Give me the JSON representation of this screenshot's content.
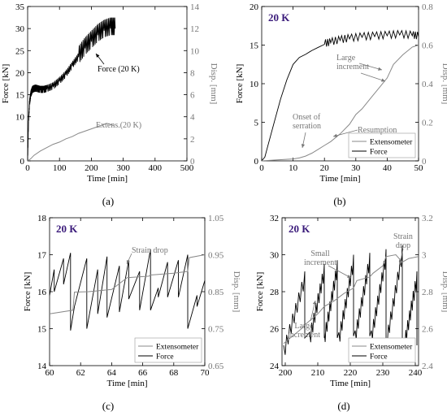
{
  "chart_data": [
    {
      "id": "a",
      "type": "line",
      "caption": "(a)",
      "xlabel": "Time [min]",
      "ylabel": "Force [kN]",
      "ylabel_right": "Disp. [mm]",
      "xlim": [
        0,
        500
      ],
      "ylim": [
        0,
        35
      ],
      "ylim_right": [
        0,
        14
      ],
      "xticks": [
        0,
        100,
        200,
        300,
        400,
        500
      ],
      "yticks": [
        0,
        5,
        10,
        15,
        20,
        25,
        30,
        35
      ],
      "yticks_right": [
        0,
        2,
        4,
        6,
        8,
        10,
        12,
        14
      ],
      "grid": false,
      "annotations": [
        {
          "text": "Force (20 K)",
          "x": 220,
          "y": 21
        },
        {
          "text": "Extens.(20 K)",
          "x": 200,
          "y": 7.5
        }
      ],
      "series": [
        {
          "axis": "left",
          "color": "#000000",
          "x": [
            0,
            3,
            6,
            10,
            15,
            20,
            25,
            30,
            40,
            50,
            60,
            80,
            100,
            120,
            140,
            160,
            180,
            200,
            220,
            240,
            260,
            275
          ],
          "y": [
            0,
            9,
            13,
            15,
            16,
            16.2,
            16.3,
            16.2,
            16,
            16,
            16.2,
            16.8,
            18,
            19.5,
            21.5,
            23.5,
            25.5,
            27,
            28.5,
            29.5,
            30,
            30
          ],
          "serrated": true
        },
        {
          "axis": "right",
          "color": "#888888",
          "x": [
            0,
            10,
            20,
            40,
            60,
            80,
            100,
            120,
            140,
            160,
            180,
            200,
            220,
            240,
            250,
            260,
            270
          ],
          "y": [
            0,
            0.2,
            0.5,
            0.9,
            1.2,
            1.5,
            1.7,
            2.0,
            2.2,
            2.5,
            2.7,
            2.9,
            3.1,
            3.3,
            3.4,
            3.3,
            3.2
          ]
        }
      ]
    },
    {
      "id": "b",
      "type": "line",
      "caption": "(b)",
      "title": "20 K",
      "xlabel": "Time [min]",
      "ylabel": "Force [kN]",
      "ylabel_right": "Disp. [mm]",
      "xlim": [
        0,
        50
      ],
      "ylim": [
        0,
        20
      ],
      "ylim_right": [
        0,
        0.8
      ],
      "xticks": [
        0,
        10,
        20,
        30,
        40,
        50
      ],
      "yticks": [
        0,
        5,
        10,
        15,
        20
      ],
      "yticks_right": [
        0,
        0.2,
        0.4,
        0.6,
        0.8
      ],
      "grid": false,
      "legend": {
        "position": "bottom-right",
        "entries": [
          "Extensometer",
          "Force"
        ]
      },
      "annotations": [
        {
          "text": "Large",
          "text2": "increment"
        },
        {
          "text": "Onset of",
          "text2": "serration"
        },
        {
          "text": "Resumption"
        }
      ],
      "series": [
        {
          "name": "Force",
          "axis": "left",
          "color": "#000000",
          "x": [
            0,
            1,
            2,
            4,
            6,
            8,
            10,
            12,
            14,
            16,
            18,
            20,
            22,
            25,
            28,
            32,
            36,
            40,
            44,
            48,
            50
          ],
          "y": [
            0,
            0.5,
            2,
            5,
            8,
            10.5,
            12.5,
            13.4,
            13.8,
            14.3,
            14.7,
            15.1,
            15.3,
            15.6,
            15.8,
            16.0,
            16.1,
            16.2,
            16.3,
            16.2,
            16.1
          ],
          "serrated_from": 20
        },
        {
          "name": "Extensometer",
          "axis": "right",
          "color": "#888888",
          "x": [
            0,
            5,
            10,
            12,
            14,
            16,
            18,
            20,
            22,
            25,
            28,
            30,
            32,
            35,
            38,
            40,
            42,
            45,
            48,
            50
          ],
          "y": [
            0,
            0.005,
            0.01,
            0.015,
            0.025,
            0.04,
            0.06,
            0.08,
            0.1,
            0.14,
            0.19,
            0.24,
            0.27,
            0.33,
            0.39,
            0.43,
            0.5,
            0.55,
            0.59,
            0.6
          ]
        }
      ]
    },
    {
      "id": "c",
      "type": "line",
      "caption": "(c)",
      "title": "20 K",
      "xlabel": "Time [min]",
      "ylabel": "Force [kN]",
      "ylabel_right": "Disp. [mm]",
      "xlim": [
        60,
        70
      ],
      "ylim": [
        14,
        18
      ],
      "ylim_right": [
        0.65,
        1.05
      ],
      "xticks": [
        60,
        62,
        64,
        66,
        68,
        70
      ],
      "yticks": [
        14,
        15,
        16,
        17,
        18
      ],
      "yticks_right": [
        0.65,
        0.75,
        0.85,
        0.95,
        1.05
      ],
      "grid": false,
      "legend": {
        "position": "bottom-right",
        "entries": [
          "Extensometer",
          "Force"
        ]
      },
      "annotations": [
        {
          "text": "Strain drop"
        }
      ],
      "series": [
        {
          "name": "Force",
          "axis": "left",
          "color": "#000000",
          "x": [
            60,
            60.3,
            60.3,
            60.9,
            60.9,
            61.35,
            61.35,
            61.6,
            61.6,
            62.4,
            62.4,
            63.1,
            63.1,
            63.7,
            63.7,
            64.5,
            64.5,
            65.1,
            65.1,
            65.8,
            65.8,
            66.5,
            66.5,
            67.0,
            67.0,
            67.6,
            67.6,
            68.3,
            68.3,
            68.9,
            68.9,
            69.5,
            69.5,
            70
          ],
          "y": [
            15.9,
            16.6,
            16.0,
            16.9,
            16.2,
            17.05,
            14.95,
            15.6,
            15.6,
            16.9,
            15.0,
            16.6,
            15.4,
            16.95,
            15.3,
            16.7,
            15.45,
            16.85,
            15.8,
            16.55,
            15.5,
            17.15,
            15.5,
            16.1,
            15.85,
            16.8,
            15.85,
            16.85,
            15.85,
            17.0,
            15.0,
            15.9,
            15.6,
            16.3
          ]
        },
        {
          "name": "Extensometer",
          "axis": "right",
          "color": "#888888",
          "x": [
            60,
            61.5,
            61.6,
            62.5,
            63.0,
            64.0,
            65.0,
            66.4,
            66.5,
            68.0,
            68.9,
            69.0,
            70
          ],
          "y": [
            0.79,
            0.8,
            0.849,
            0.85,
            0.852,
            0.856,
            0.888,
            0.892,
            0.895,
            0.9,
            0.905,
            0.942,
            0.95
          ]
        }
      ]
    },
    {
      "id": "d",
      "type": "line",
      "caption": "(d)",
      "title": "20 K",
      "xlabel": "Time [min]",
      "ylabel": "Force [kN]",
      "ylabel_right": "Disp. [mm]",
      "xlim": [
        199,
        241
      ],
      "ylim": [
        24,
        32
      ],
      "ylim_right": [
        2.4,
        3.2
      ],
      "xticks": [
        200,
        210,
        220,
        230,
        240
      ],
      "yticks": [
        24,
        26,
        28,
        30,
        32
      ],
      "yticks_right": [
        2.4,
        2.6,
        2.8,
        3.0,
        3.2
      ],
      "grid": false,
      "legend": {
        "position": "bottom-right",
        "entries": [
          "Extensometer",
          "Force"
        ]
      },
      "annotations": [
        {
          "text": "Small",
          "text2": "increment"
        },
        {
          "text": "Strain",
          "text2": "drop"
        },
        {
          "text": "Large",
          "text2": "increment"
        }
      ],
      "series": [
        {
          "name": "Force",
          "axis": "left",
          "color": "#000000",
          "segments": [
            {
              "x0": 199.5,
              "x1": 206,
              "y0": 24.8,
              "y1": 28.8
            },
            {
              "x0": 207.5,
              "x1": 212,
              "y0": 25.5,
              "y1": 29.2
            },
            {
              "x0": 212,
              "x1": 216,
              "y0": 25.5,
              "y1": 29.4
            },
            {
              "x0": 216.5,
              "x1": 221,
              "y0": 25.5,
              "y1": 29.7
            },
            {
              "x0": 221.5,
              "x1": 226,
              "y0": 25.6,
              "y1": 29.8
            },
            {
              "x0": 226.5,
              "x1": 231,
              "y0": 25.6,
              "y1": 30.0
            },
            {
              "x0": 231,
              "x1": 236,
              "y0": 25.2,
              "y1": 30.2
            },
            {
              "x0": 236.5,
              "x1": 240.5,
              "y0": 25.1,
              "y1": 28.8
            }
          ],
          "drops_to": [
            25.5,
            25.5,
            25.5,
            25.6,
            25.6,
            25.2,
            24.8,
            25.1
          ]
        },
        {
          "name": "Extensometer",
          "axis": "right",
          "color": "#888888",
          "x": [
            199.5,
            205,
            206,
            210,
            212,
            215,
            218,
            221,
            222,
            226,
            227,
            230,
            231,
            234,
            236,
            238,
            241
          ],
          "y": [
            2.52,
            2.6,
            2.62,
            2.68,
            2.72,
            2.75,
            2.79,
            2.82,
            2.86,
            2.88,
            2.9,
            2.94,
            2.99,
            3.0,
            2.96,
            2.98,
            2.99
          ]
        }
      ]
    }
  ]
}
